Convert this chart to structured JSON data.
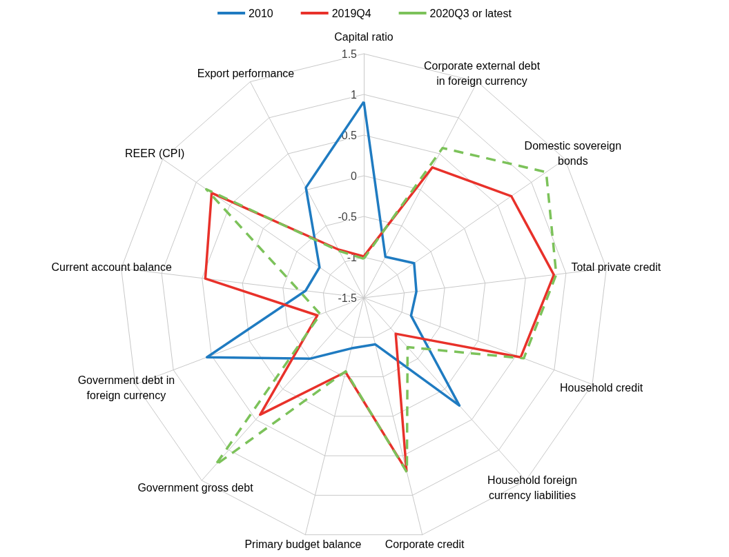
{
  "chart_data": {
    "type": "radar",
    "categories": [
      "Capital ratio",
      "Corporate external debt in foreign currency",
      "Domestic sovereign bonds",
      "Total private credit",
      "Household credit",
      "Household foreign currency liabilities",
      "Corporate credit",
      "Primary budget balance",
      "Government gross debt",
      "Government debt in foreign currency",
      "Current account balance",
      "REER (CPI)",
      "Export performance"
    ],
    "ylim": [
      -1.5,
      1.5
    ],
    "yticks": [
      -1.5,
      -1,
      -0.5,
      0,
      0.5,
      1,
      1.5
    ],
    "legend": "top",
    "marker": "none",
    "grid": true,
    "series": [
      {
        "name": "2010",
        "color": "#1f7bc1",
        "line_style": "solid",
        "values": [
          0.91,
          -0.93,
          -0.75,
          -0.85,
          -0.88,
          0.27,
          -0.91,
          -0.86,
          -0.5,
          0.56,
          -0.78,
          -0.84,
          0.03
        ]
      },
      {
        "name": "2019Q4",
        "color": "#e8312a",
        "line_style": "solid",
        "values": [
          -0.99,
          0.31,
          0.7,
          0.85,
          0.56,
          -0.91,
          0.69,
          -0.56,
          0.42,
          -0.89,
          0.46,
          0.77,
          -0.83
        ]
      },
      {
        "name": "2020Q3 or latest",
        "color": "#7cc25a",
        "line_style": "dashed",
        "values": [
          -1.02,
          0.58,
          1.22,
          0.88,
          0.6,
          -0.69,
          0.71,
          -0.57,
          1.25,
          -0.93,
          -0.69,
          0.85,
          -0.85
        ]
      }
    ]
  }
}
